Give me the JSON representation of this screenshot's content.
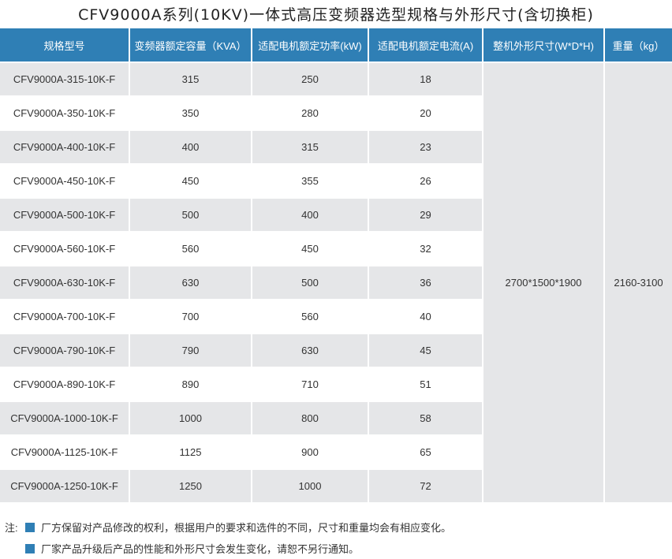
{
  "title": "CFV9000A系列(10KV)一体式高压变频器选型规格与外形尺寸(含切换柜)",
  "headers": [
    "规格型号",
    "变频器额定容量（KVA）",
    "适配电机额定功率(kW)",
    "适配电机额定电流(A)",
    "整机外形尺寸(W*D*H)",
    "重量（kg）"
  ],
  "rows": [
    [
      "CFV9000A-315-10K-F",
      "315",
      "250",
      "18"
    ],
    [
      "CFV9000A-350-10K-F",
      "350",
      "280",
      "20"
    ],
    [
      "CFV9000A-400-10K-F",
      "400",
      "315",
      "23"
    ],
    [
      "CFV9000A-450-10K-F",
      "450",
      "355",
      "26"
    ],
    [
      "CFV9000A-500-10K-F",
      "500",
      "400",
      "29"
    ],
    [
      "CFV9000A-560-10K-F",
      "560",
      "450",
      "32"
    ],
    [
      "CFV9000A-630-10K-F",
      "630",
      "500",
      "36"
    ],
    [
      "CFV9000A-700-10K-F",
      "700",
      "560",
      "40"
    ],
    [
      "CFV9000A-790-10K-F",
      "790",
      "630",
      "45"
    ],
    [
      "CFV9000A-890-10K-F",
      "890",
      "710",
      "51"
    ],
    [
      "CFV9000A-1000-10K-F",
      "1000",
      "800",
      "58"
    ],
    [
      "CFV9000A-1125-10K-F",
      "1125",
      "900",
      "65"
    ],
    [
      "CFV9000A-1250-10K-F",
      "1250",
      "1000",
      "72"
    ]
  ],
  "dimensions": "2700*1500*1900",
  "weight": "2160-3100",
  "notes": {
    "prefix": "注:",
    "items": [
      "厂方保留对产品修改的权利，根据用户的要求和选件的不同，尺寸和重量均会有相应变化。",
      "厂家产品升级后产品的性能和外形尺寸会发生变化，请恕不另行通知。"
    ]
  },
  "colors": {
    "header": "#2f7fb5",
    "row_alt": "#e5e6e8"
  }
}
